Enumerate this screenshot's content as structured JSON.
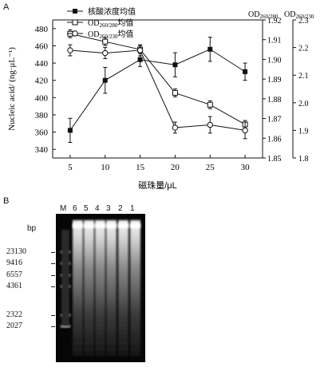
{
  "panel_a_label": "A",
  "panel_b_label": "B",
  "chart_data": {
    "type": "line",
    "x": [
      5,
      10,
      15,
      20,
      25,
      30
    ],
    "xlabel": "磁珠量/μL",
    "ylabel_left": "Nucleic acid/ (ng·μL⁻¹)",
    "ylabel_right_1": "OD260/280",
    "ylabel_right_2": "OD260/230",
    "yticks_left": [
      "340",
      "360",
      "380",
      "400",
      "420",
      "440",
      "460",
      "480"
    ],
    "yticks_right_1": [
      "1.85",
      "1.86",
      "1.87",
      "1.88",
      "1.89",
      "1.90",
      "1.91",
      "1.92"
    ],
    "yticks_right_2": [
      "1.8",
      "1.9",
      "2.0",
      "2.1",
      "2.2",
      "2.3"
    ],
    "ylim_left": [
      330,
      490
    ],
    "ylim_right_1": [
      1.85,
      1.92
    ],
    "ylim_right_2": [
      1.8,
      2.3
    ],
    "series": [
      {
        "name": "核酸浓度均值",
        "axis": "left",
        "marker": "filled-square",
        "values": [
          362,
          420,
          444,
          438,
          456,
          430
        ],
        "errors": [
          14,
          15,
          8,
          14,
          14,
          10
        ]
      },
      {
        "name": "OD260/280均值",
        "axis": "right_1",
        "marker": "open-square",
        "values": [
          1.913,
          1.909,
          1.905,
          1.883,
          1.877,
          1.867
        ],
        "errors": [
          0.002,
          0.002,
          0.002,
          0.002,
          0.002,
          0.002
        ]
      },
      {
        "name": "OD260/230均值",
        "axis": "right_2",
        "marker": "open-circle",
        "values": [
          2.19,
          2.18,
          2.19,
          1.91,
          1.92,
          1.9
        ],
        "errors": [
          0.02,
          0.02,
          0.02,
          0.02,
          0.03,
          0.03
        ]
      }
    ]
  },
  "gel": {
    "lane_labels": [
      "M",
      "6",
      "5",
      "4",
      "3",
      "2",
      "1"
    ],
    "bp_unit": "bp",
    "marker_sizes": [
      "23130",
      "9416",
      "6557",
      "4361",
      "2322",
      "2027"
    ]
  }
}
